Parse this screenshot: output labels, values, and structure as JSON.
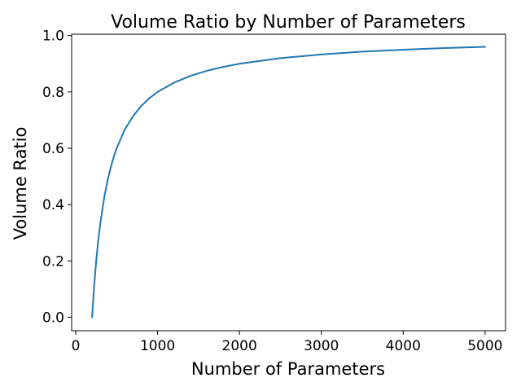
{
  "chart_data": {
    "type": "line",
    "title": "Volume Ratio by Number of Parameters",
    "xlabel": "Number of Parameters",
    "ylabel": "Volume Ratio",
    "xlim": [
      -50,
      5250
    ],
    "ylim": [
      -0.048,
      1.005
    ],
    "xticks": [
      0,
      1000,
      2000,
      3000,
      4000,
      5000
    ],
    "xtick_labels": [
      "0",
      "1000",
      "2000",
      "3000",
      "4000",
      "5000"
    ],
    "yticks": [
      0.0,
      0.2,
      0.4,
      0.6,
      0.8,
      1.0
    ],
    "ytick_labels": [
      "0.0",
      "0.2",
      "0.4",
      "0.6",
      "0.8",
      "1.0"
    ],
    "grid": false,
    "line_color": "#1f77b4",
    "series": [
      {
        "x": [
          200,
          225,
          250,
          275,
          300,
          350,
          400,
          450,
          500,
          600,
          700,
          800,
          900,
          1000,
          1200,
          1400,
          1600,
          1800,
          2000,
          2500,
          3000,
          3500,
          4000,
          4500,
          5000
        ],
        "values": [
          0.0,
          0.111,
          0.2,
          0.273,
          0.333,
          0.429,
          0.5,
          0.556,
          0.6,
          0.667,
          0.714,
          0.75,
          0.778,
          0.8,
          0.833,
          0.857,
          0.875,
          0.889,
          0.9,
          0.92,
          0.933,
          0.943,
          0.95,
          0.956,
          0.96
        ]
      }
    ]
  }
}
